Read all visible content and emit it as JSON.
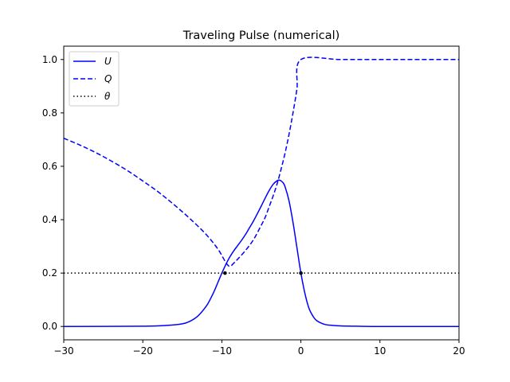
{
  "chart_data": {
    "type": "line",
    "title": "Traveling Pulse (numerical)",
    "xlabel": "",
    "ylabel": "",
    "xlim": [
      -30,
      20
    ],
    "ylim": [
      -0.05,
      1.05
    ],
    "xticks": [
      -30,
      -20,
      -10,
      0,
      10,
      20
    ],
    "yticks": [
      0.0,
      0.2,
      0.4,
      0.6,
      0.8,
      1.0
    ],
    "xtick_labels": [
      "−30",
      "−20",
      "−10",
      "0",
      "10",
      "20"
    ],
    "ytick_labels": [
      "0.0",
      "0.2",
      "0.4",
      "0.6",
      "0.8",
      "1.0"
    ],
    "grid": false,
    "legend_position": "top-left",
    "series": [
      {
        "name": "U",
        "style": "solid",
        "color": "#0000ff",
        "x": [
          -30,
          -20,
          -17,
          -15,
          -14,
          -13,
          -12,
          -11.5,
          -11,
          -10.5,
          -10,
          -9.5,
          -9,
          -8.5,
          -8,
          -7.5,
          -7,
          -6.5,
          -6,
          -5.5,
          -5,
          -4.5,
          -4,
          -3.5,
          -3,
          -2.7,
          -2.3,
          -2,
          -1.5,
          -1,
          -0.5,
          0,
          0.5,
          1,
          1.5,
          2,
          3,
          4,
          5,
          7,
          10,
          20
        ],
        "y": [
          0,
          0.001,
          0.004,
          0.01,
          0.02,
          0.04,
          0.075,
          0.1,
          0.13,
          0.165,
          0.2,
          0.232,
          0.26,
          0.283,
          0.303,
          0.323,
          0.345,
          0.37,
          0.395,
          0.423,
          0.452,
          0.482,
          0.51,
          0.533,
          0.546,
          0.548,
          0.54,
          0.523,
          0.47,
          0.39,
          0.295,
          0.2,
          0.125,
          0.07,
          0.04,
          0.022,
          0.008,
          0.004,
          0.002,
          0.001,
          0,
          0
        ]
      },
      {
        "name": "Q",
        "style": "dashed",
        "color": "#0000ff",
        "x": [
          -30,
          -28,
          -26,
          -24,
          -22,
          -20,
          -18,
          -16,
          -14,
          -12,
          -10.5,
          -9.5,
          -9,
          -8.5,
          -8,
          -7,
          -6,
          -5,
          -4.5,
          -4,
          -3.5,
          -3,
          -2.5,
          -2,
          -1.5,
          -1,
          -0.5,
          0,
          5,
          10,
          15,
          20
        ],
        "y": [
          0.705,
          0.68,
          0.652,
          0.62,
          0.585,
          0.545,
          0.503,
          0.455,
          0.403,
          0.345,
          0.29,
          0.24,
          0.225,
          0.237,
          0.252,
          0.285,
          0.325,
          0.38,
          0.41,
          0.45,
          0.49,
          0.535,
          0.59,
          0.65,
          0.72,
          0.8,
          0.89,
          1.0,
          1.0,
          1.0,
          1.0,
          1.0
        ]
      },
      {
        "name": "θ",
        "style": "dotted",
        "color": "#000000",
        "x": [
          -30,
          20
        ],
        "y": [
          0.2,
          0.2
        ]
      }
    ],
    "markers": [
      {
        "x": -9.6,
        "y": 0.2
      },
      {
        "x": 0,
        "y": 0.2
      }
    ]
  }
}
